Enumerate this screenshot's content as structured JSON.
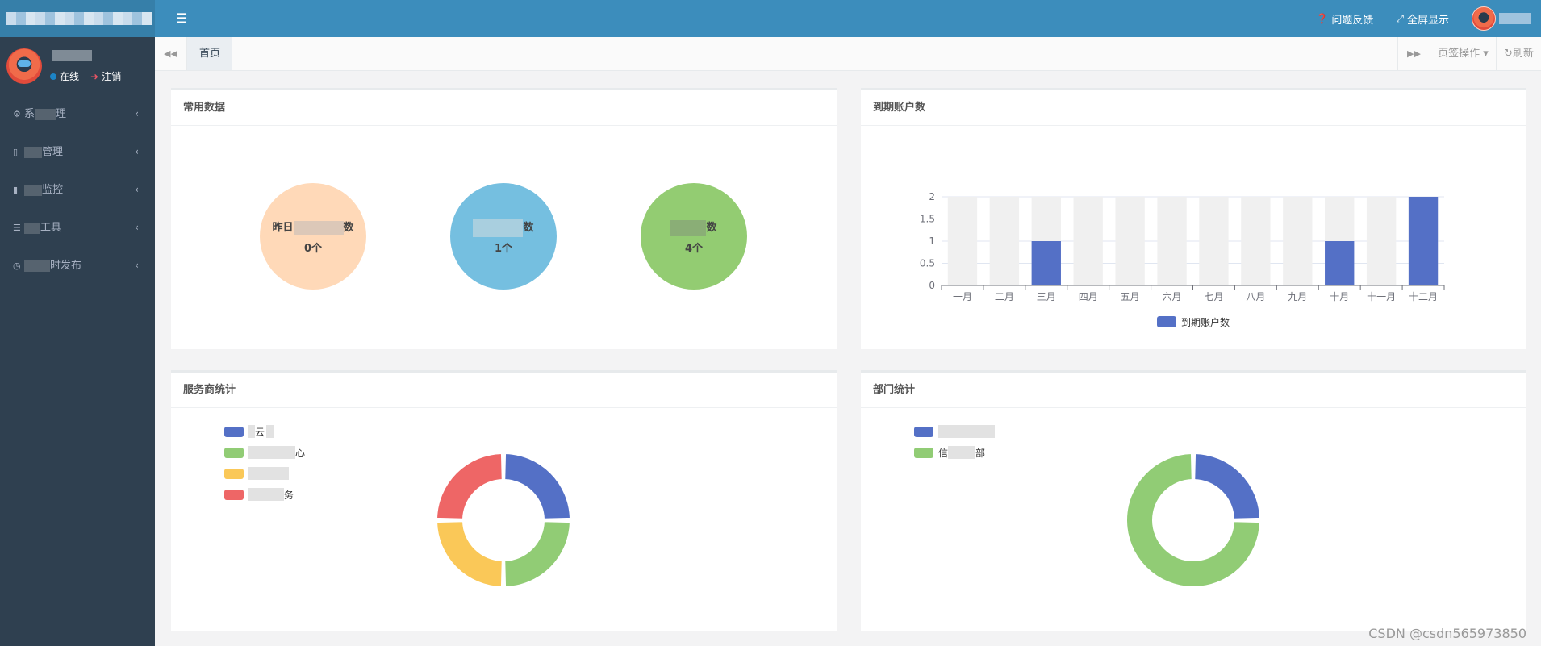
{
  "header": {
    "menu_toggle_icon": "bars-icon",
    "feedback_label": "问题反馈",
    "fullscreen_label": "全屏显示"
  },
  "sidebar": {
    "status_online": "在线",
    "logout_label": "注销",
    "items": [
      {
        "icon": "gear-icon",
        "prefix": "系",
        "suffix": "理"
      },
      {
        "icon": "book-icon",
        "prefix": "",
        "suffix": "管理"
      },
      {
        "icon": "video-icon",
        "prefix": "",
        "suffix": "监控"
      },
      {
        "icon": "list-icon",
        "prefix": "",
        "suffix": "工具"
      },
      {
        "icon": "clock-icon",
        "prefix": "",
        "suffix": "时发布"
      }
    ]
  },
  "tabs": {
    "active_label": "首页",
    "ops_label": "页签操作",
    "refresh_label": "刷新"
  },
  "panel_common": {
    "title": "常用数据",
    "circles": [
      {
        "label_left": "昨日",
        "label_right": "数",
        "value": "0个",
        "color": "#ffd9b8"
      },
      {
        "label_left": "",
        "label_right": "数",
        "value": "1个",
        "color": "#75bfe0"
      },
      {
        "label_left": "",
        "label_right": "数",
        "value": "4个",
        "color": "#93cc72"
      }
    ]
  },
  "panel_expire": {
    "title": "到期账户数",
    "chart_data": {
      "type": "bar",
      "categories": [
        "一月",
        "二月",
        "三月",
        "四月",
        "五月",
        "六月",
        "七月",
        "八月",
        "九月",
        "十月",
        "十一月",
        "十二月"
      ],
      "series": [
        {
          "name": "到期账户数",
          "values": [
            0,
            0,
            1,
            0,
            0,
            0,
            0,
            0,
            0,
            1,
            0,
            2
          ],
          "color": "#5470c6"
        }
      ],
      "yticks": [
        "0",
        "0.5",
        "1",
        "1.5",
        "2"
      ],
      "ylim": [
        0,
        2
      ],
      "legend": "bottom-center",
      "grid": true
    }
  },
  "panel_provider": {
    "title": "服务商统计",
    "legend": [
      {
        "prefix": "",
        "suffix": "云",
        "color": "#5470c6"
      },
      {
        "prefix": "",
        "suffix": "心",
        "color": "#91cc75"
      },
      {
        "prefix": "",
        "suffix": "",
        "color": "#fac858"
      },
      {
        "prefix": "",
        "suffix": "务",
        "color": "#ee6666"
      }
    ],
    "chart_data": {
      "type": "pie",
      "donut": true,
      "values": [
        1,
        1,
        1,
        1
      ],
      "colors": [
        "#5470c6",
        "#91cc75",
        "#fac858",
        "#ee6666"
      ]
    }
  },
  "panel_dept": {
    "title": "部门统计",
    "legend": [
      {
        "prefix": "",
        "suffix": "",
        "color": "#5470c6"
      },
      {
        "prefix": "信",
        "suffix": "部",
        "color": "#91cc75"
      }
    ],
    "chart_data": {
      "type": "pie",
      "donut": true,
      "values": [
        1,
        3
      ],
      "colors": [
        "#5470c6",
        "#91cc75"
      ]
    }
  },
  "watermark": "CSDN @csdn565973850"
}
